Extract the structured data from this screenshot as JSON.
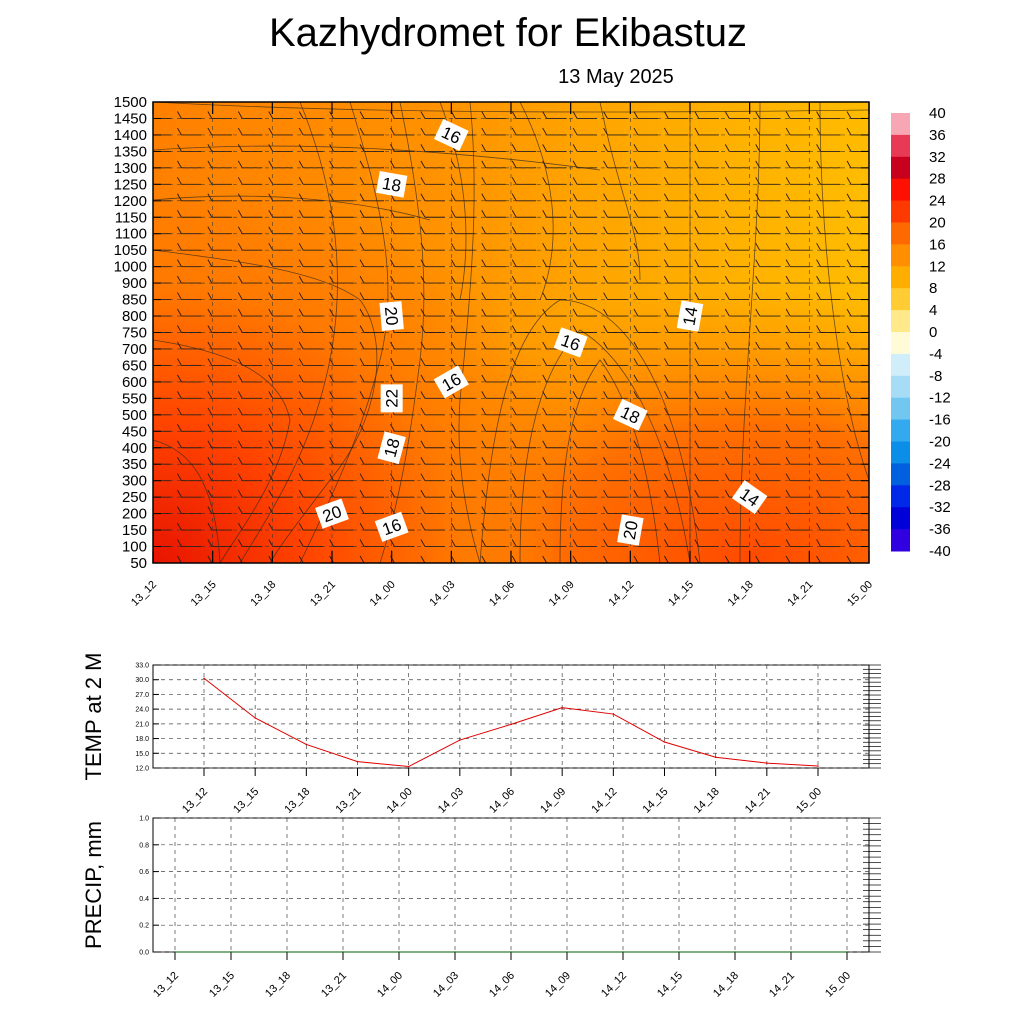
{
  "header": {
    "title": "Kazhydromet  for Ekibastuz",
    "date": "13 May 2025"
  },
  "colors": {
    "temp_line": "#e00000",
    "precip_line": "#006000",
    "frame": "#000000",
    "grid": "#555555"
  },
  "chart_data": [
    {
      "type": "heatmap",
      "name": "cross-section",
      "x_labels": [
        "13_12",
        "13_15",
        "13_18",
        "13_21",
        "14_00",
        "14_03",
        "14_06",
        "14_09",
        "14_12",
        "14_15",
        "14_18",
        "14_21",
        "15_00"
      ],
      "y_ticks": [
        50,
        100,
        150,
        200,
        250,
        300,
        350,
        400,
        450,
        500,
        550,
        600,
        650,
        700,
        750,
        800,
        850,
        900,
        1000,
        1050,
        1100,
        1150,
        1200,
        1250,
        1300,
        1350,
        1400,
        1450,
        1500
      ],
      "y_tick_labels": [
        "50",
        "100",
        "150",
        "200",
        "250",
        "300",
        "350",
        "400",
        "450",
        "500",
        "550",
        "600",
        "650",
        "700",
        "750",
        "800",
        "850",
        "900",
        "1000",
        "1050",
        "1100",
        "1150",
        "1200",
        "1250",
        "1300",
        "1350",
        "1400",
        "1450",
        "1500"
      ],
      "ylim": [
        50,
        1500
      ],
      "colorbar_labels": [
        "40",
        "36",
        "32",
        "28",
        "24",
        "20",
        "16",
        "12",
        "8",
        "4",
        "0",
        "-4",
        "-8",
        "-12",
        "-16",
        "-20",
        "-24",
        "-28",
        "-32",
        "-36",
        "-40"
      ],
      "colorbar_colors": [
        "#f7a6b4",
        "#e83a55",
        "#c8001e",
        "#ff1000",
        "#ff3a00",
        "#ff6a00",
        "#ff8f00",
        "#ffae00",
        "#ffcc33",
        "#ffe98a",
        "#fffbd6",
        "#cfeefa",
        "#a6dcf5",
        "#72c7f0",
        "#33aaf0",
        "#0a8ee8",
        "#0060e0",
        "#0028e8",
        "#0000d8",
        "#3000e0",
        "#8a30f0"
      ],
      "contour_labels": [
        {
          "text": "16",
          "x": "14_03",
          "y": 1400
        },
        {
          "text": "18",
          "x": "14_00",
          "y": 1250
        },
        {
          "text": "20",
          "x": "14_00",
          "y": 800
        },
        {
          "text": "16",
          "x": "14_09",
          "y": 720
        },
        {
          "text": "14",
          "x": "14_15",
          "y": 800
        },
        {
          "text": "16",
          "x": "14_03",
          "y": 600
        },
        {
          "text": "22",
          "x": "14_00",
          "y": 550
        },
        {
          "text": "18",
          "x": "14_12",
          "y": 500
        },
        {
          "text": "18",
          "x": "14_00",
          "y": 400
        },
        {
          "text": "14",
          "x": "14_18",
          "y": 250
        },
        {
          "text": "20",
          "x": "13_21",
          "y": 200
        },
        {
          "text": "16",
          "x": "14_00",
          "y": 160
        },
        {
          "text": "20",
          "x": "14_12",
          "y": 150
        }
      ]
    },
    {
      "type": "line",
      "name": "temperature",
      "ylabel": "TEMP at 2 M",
      "categories": [
        "13_12",
        "13_15",
        "13_18",
        "13_21",
        "14_00",
        "14_03",
        "14_06",
        "14_09",
        "14_12",
        "14_15",
        "14_18",
        "14_21",
        "15_00"
      ],
      "values": [
        30.3,
        22.2,
        16.8,
        13.3,
        12.3,
        17.7,
        20.9,
        24.3,
        23.0,
        17.3,
        14.2,
        13.0,
        12.4
      ],
      "y_ticks": [
        "12.0",
        "15.0",
        "18.0",
        "21.0",
        "24.0",
        "27.0",
        "30.0",
        "33.0"
      ],
      "ylim": [
        12,
        33
      ]
    },
    {
      "type": "line",
      "name": "precipitation",
      "ylabel": "PRECIP, mm",
      "categories": [
        "13_12",
        "13_15",
        "13_18",
        "13_21",
        "14_00",
        "14_03",
        "14_06",
        "14_09",
        "14_12",
        "14_15",
        "14_18",
        "14_21",
        "15_00"
      ],
      "values": [
        0,
        0,
        0,
        0,
        0,
        0,
        0,
        0,
        0,
        0,
        0,
        0,
        0
      ],
      "y_ticks": [
        "0.0",
        "0.2",
        "0.4",
        "0.6",
        "0.8",
        "1.0"
      ],
      "ylim": [
        0,
        1
      ]
    }
  ]
}
